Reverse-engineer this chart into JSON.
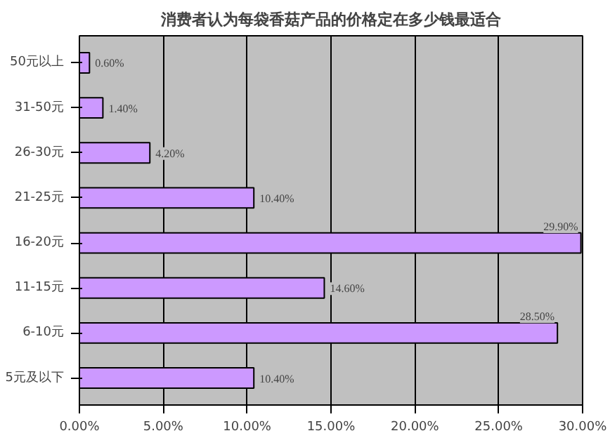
{
  "chart_data": {
    "type": "bar",
    "orientation": "horizontal",
    "title": "消费者认为每袋香菇产品的价格定在多少钱最适合",
    "categories": [
      "50元以上",
      "31-50元",
      "26-30元",
      "21-25元",
      "16-20元",
      "11-15元",
      "6-10元",
      "5元及以下"
    ],
    "values": [
      0.6,
      1.4,
      4.2,
      10.4,
      29.9,
      14.6,
      28.5,
      10.4
    ],
    "value_labels": [
      "0.60%",
      "1.40%",
      "4.20%",
      "10.40%",
      "29.90%",
      "14.60%",
      "28.50%",
      "10.40%"
    ],
    "color": "#cc99ff",
    "xlim": [
      0,
      30
    ],
    "xticks": [
      {
        "value": 0,
        "label": "0.00%"
      },
      {
        "value": 5,
        "label": "5.00%"
      },
      {
        "value": 10,
        "label": "10.00%"
      },
      {
        "value": 15,
        "label": "15.00%"
      },
      {
        "value": 20,
        "label": "20.00%"
      },
      {
        "value": 25,
        "label": "25.00%"
      },
      {
        "value": 30,
        "label": "30.00%"
      }
    ],
    "grid": "x"
  }
}
